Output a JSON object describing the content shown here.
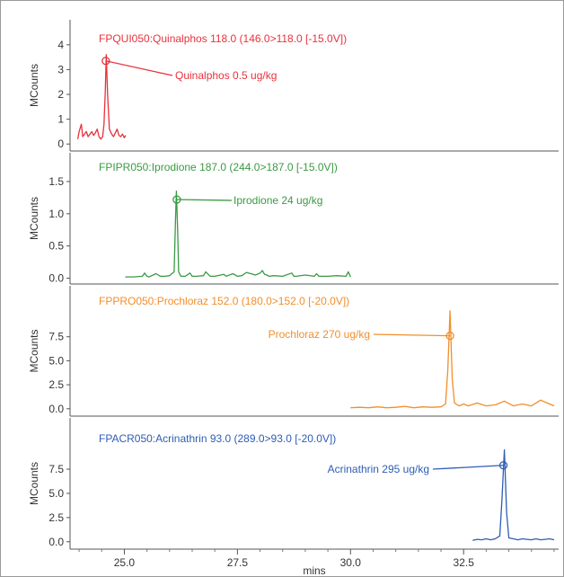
{
  "chart_data": [
    {
      "type": "line",
      "title": "FPQUI050:Quinalphos 118.0 (146.0>118.0 [-15.0V])",
      "ylabel": "MCounts",
      "ylim": [
        -0.1,
        4.5
      ],
      "yticks": [
        0,
        1,
        2,
        3,
        4
      ],
      "color": "#e8323c",
      "series": [
        {
          "x": [
            23.97,
            24.0,
            24.05,
            24.08,
            24.12,
            24.16,
            24.2,
            24.24,
            24.28,
            24.32,
            24.36,
            24.4,
            24.44,
            24.48,
            24.52,
            24.55,
            24.58,
            24.6,
            24.63,
            24.67,
            24.72,
            24.76,
            24.8,
            24.84,
            24.88,
            24.92,
            24.96,
            25.0,
            25.03
          ],
          "values": [
            0.2,
            0.5,
            0.8,
            0.3,
            0.4,
            0.5,
            0.3,
            0.4,
            0.5,
            0.35,
            0.45,
            0.6,
            0.3,
            0.2,
            0.3,
            0.8,
            2.2,
            3.6,
            2.0,
            0.6,
            0.4,
            0.3,
            0.45,
            0.6,
            0.35,
            0.3,
            0.4,
            0.25,
            0.35
          ]
        }
      ],
      "annotations": [
        {
          "label": "Quinalphos 0.5 ug/kg",
          "x": 24.59,
          "y": 3.35
        }
      ]
    },
    {
      "type": "line",
      "title": "FPIPR050:Iprodione 187.0 (244.0>187.0 [-15.0V])",
      "ylabel": "MCounts",
      "ylim": [
        -0.02,
        1.75
      ],
      "yticks": [
        0.0,
        0.5,
        1.0,
        1.5
      ],
      "color": "#3b9a44",
      "series": [
        {
          "x": [
            25.02,
            25.2,
            25.4,
            25.45,
            25.5,
            25.55,
            25.7,
            25.8,
            25.9,
            26.0,
            26.1,
            26.13,
            26.15,
            26.18,
            26.2,
            26.25,
            26.35,
            26.45,
            26.5,
            26.6,
            26.75,
            26.8,
            26.9,
            27.0,
            27.2,
            27.25,
            27.4,
            27.5,
            27.6,
            27.7,
            27.9,
            28.0,
            28.05,
            28.1,
            28.15,
            28.2,
            28.3,
            28.5,
            28.7,
            28.75,
            28.8,
            29.0,
            29.2,
            29.25,
            29.3,
            29.5,
            29.7,
            29.9,
            29.95,
            30.0
          ],
          "values": [
            0.02,
            0.02,
            0.03,
            0.08,
            0.03,
            0.02,
            0.07,
            0.03,
            0.03,
            0.04,
            0.1,
            0.9,
            1.35,
            0.7,
            0.1,
            0.03,
            0.03,
            0.08,
            0.03,
            0.03,
            0.04,
            0.1,
            0.03,
            0.03,
            0.06,
            0.03,
            0.07,
            0.03,
            0.04,
            0.09,
            0.05,
            0.08,
            0.12,
            0.06,
            0.05,
            0.03,
            0.04,
            0.03,
            0.08,
            0.03,
            0.03,
            0.05,
            0.03,
            0.07,
            0.03,
            0.03,
            0.04,
            0.03,
            0.1,
            0.02
          ]
        }
      ],
      "annotations": [
        {
          "label": "Iprodione 24 ug/kg",
          "x": 26.16,
          "y": 1.22
        }
      ]
    },
    {
      "type": "line",
      "title": "FPPRO050:Prochloraz 152.0 (180.0>152.0 [-20.0V])",
      "ylabel": "MCounts",
      "ylim": [
        -0.3,
        11.5
      ],
      "yticks": [
        0.0,
        2.5,
        5.0,
        7.5
      ],
      "color": "#f28e2b",
      "series": [
        {
          "x": [
            30.0,
            30.2,
            30.4,
            30.6,
            30.8,
            31.0,
            31.2,
            31.4,
            31.6,
            31.8,
            32.0,
            32.1,
            32.15,
            32.2,
            32.25,
            32.3,
            32.4,
            32.5,
            32.6,
            32.8,
            33.0,
            33.2,
            33.4,
            33.6,
            33.8,
            34.0,
            34.2,
            34.4,
            34.5
          ],
          "values": [
            0.1,
            0.15,
            0.1,
            0.2,
            0.1,
            0.15,
            0.25,
            0.1,
            0.2,
            0.15,
            0.2,
            0.5,
            4.0,
            10.2,
            3.0,
            0.6,
            0.3,
            0.5,
            0.3,
            0.6,
            0.3,
            0.4,
            0.8,
            0.3,
            0.5,
            0.3,
            0.9,
            0.5,
            0.3
          ]
        }
      ],
      "annotations": [
        {
          "label": "Prochloraz 270 ug/kg",
          "x": 32.2,
          "y": 7.6
        }
      ]
    },
    {
      "type": "line",
      "title": "FPACR050:Acrinathrin 93.0 (289.0>93.0 [-20.0V])",
      "ylabel": "MCounts",
      "xlabel": "mins",
      "ylim": [
        -0.3,
        11.5
      ],
      "yticks": [
        0.0,
        2.5,
        5.0,
        7.5
      ],
      "xticks": [
        25.0,
        27.5,
        30.0,
        32.5
      ],
      "xlim": [
        23.8,
        34.6
      ],
      "color": "#2e5db4",
      "series": [
        {
          "x": [
            32.7,
            32.8,
            32.9,
            33.0,
            33.1,
            33.2,
            33.3,
            33.35,
            33.4,
            33.45,
            33.5,
            33.6,
            33.7,
            33.8,
            33.9,
            34.0,
            34.1,
            34.2,
            34.3,
            34.4,
            34.5
          ],
          "values": [
            0.15,
            0.25,
            0.2,
            0.3,
            0.2,
            0.3,
            0.6,
            4.5,
            9.5,
            3.0,
            0.4,
            0.3,
            0.2,
            0.3,
            0.25,
            0.2,
            0.3,
            0.2,
            0.25,
            0.3,
            0.2
          ]
        }
      ],
      "annotations": [
        {
          "label": "Acrinathrin 295 ug/kg",
          "x": 33.38,
          "y": 7.9
        }
      ]
    }
  ]
}
